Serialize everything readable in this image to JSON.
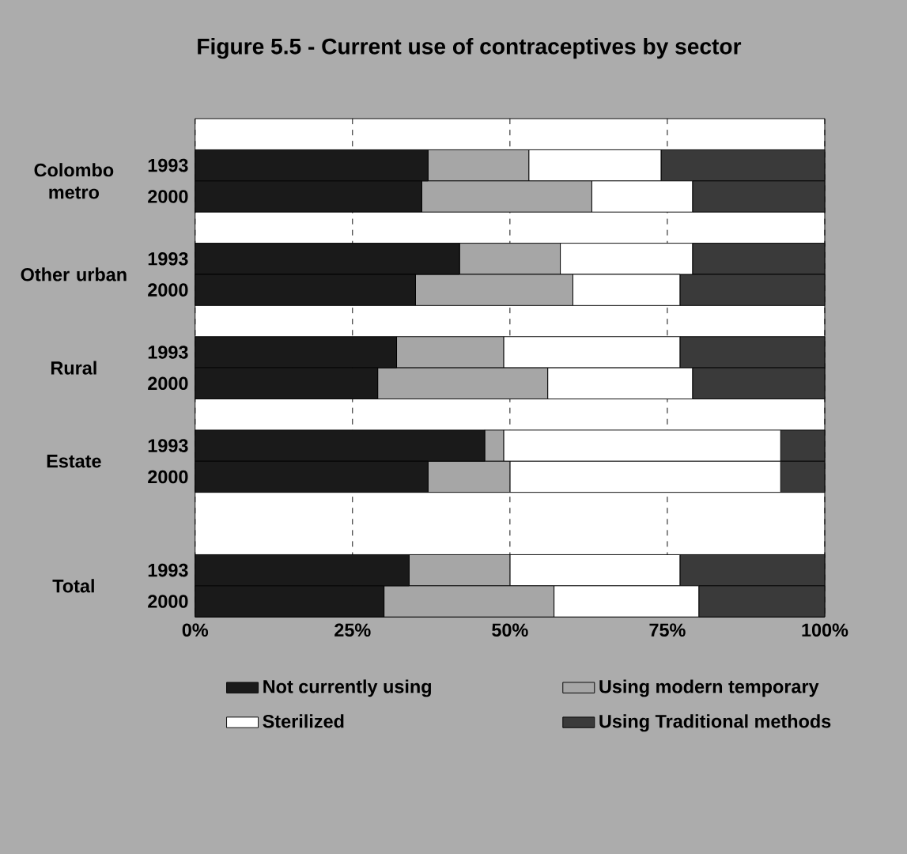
{
  "chart_data": {
    "type": "bar",
    "orientation": "horizontal",
    "stacked": true,
    "title": "Figure 5.5 - Current use of contraceptives by sector",
    "categories": [
      null,
      "1993",
      "2000",
      null,
      "1993",
      "2000",
      null,
      "1993",
      "2000",
      null,
      "1993",
      "2000",
      null,
      null,
      "1993",
      "2000"
    ],
    "annotations": [
      "Colombo metro",
      "Other urban",
      "Rural",
      "Estate",
      "Total"
    ],
    "series": [
      {
        "name": "Not currently using",
        "color": "#1a1a1a",
        "values": [
          null,
          37,
          36,
          null,
          42,
          35,
          null,
          32,
          29,
          null,
          46,
          37,
          null,
          null,
          34,
          30
        ]
      },
      {
        "name": "Using modern temporary",
        "color": "#a6a6a6",
        "values": [
          null,
          16,
          27,
          null,
          16,
          25,
          null,
          17,
          27,
          null,
          3,
          13,
          null,
          null,
          16,
          27
        ]
      },
      {
        "name": "Sterilized",
        "color": "#ffffff",
        "values": [
          null,
          21,
          16,
          null,
          21,
          17,
          null,
          28,
          23,
          null,
          44,
          43,
          null,
          null,
          27,
          23
        ]
      },
      {
        "name": "Using Traditional methods",
        "color": "#3a3a3a",
        "values": [
          null,
          26,
          21,
          null,
          21,
          23,
          null,
          23,
          21,
          null,
          7,
          7,
          null,
          null,
          23,
          20
        ]
      }
    ],
    "xlim": [
      0,
      100
    ],
    "xticks": [
      {
        "value": 0,
        "label": "0%"
      },
      {
        "value": 25,
        "label": "25%"
      },
      {
        "value": 50,
        "label": "50%"
      },
      {
        "value": 75,
        "label": "75%"
      },
      {
        "value": 100,
        "label": "100%"
      }
    ],
    "grid": "x",
    "legend": "bottom"
  }
}
